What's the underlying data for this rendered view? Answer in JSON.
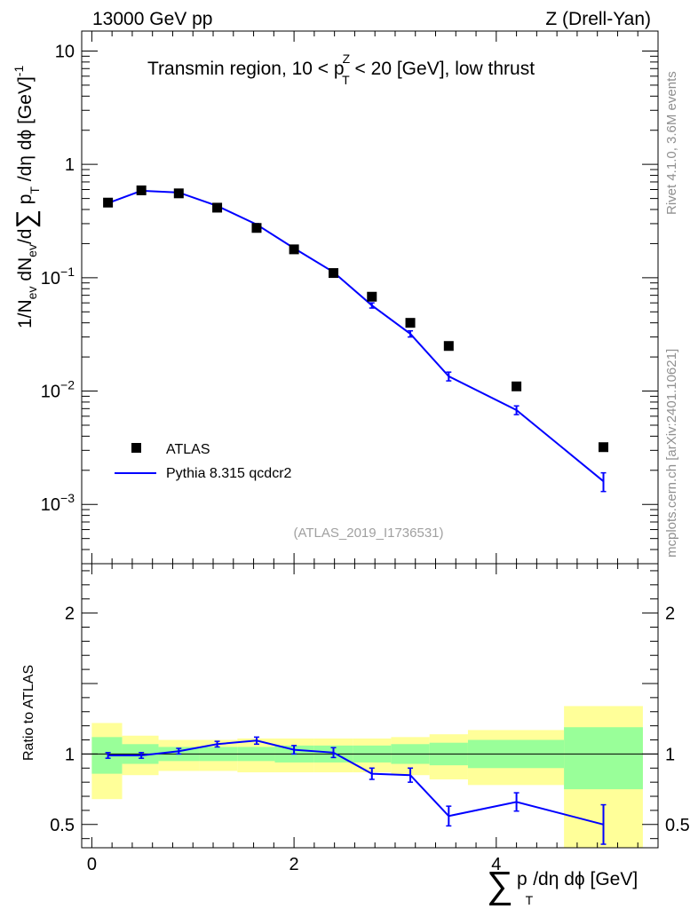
{
  "header": {
    "left": "13000 GeV pp",
    "right": "Z (Drell-Yan)"
  },
  "side_labels": {
    "rivet": "Rivet 4.1.0,  3.6M events",
    "mcplots": "mcplots.cern.ch [arXiv:2401.10621]"
  },
  "chart_data": {
    "type": "line",
    "title": {
      "pre": "Transmin region, 10 < p",
      "sup": "Z",
      "sub": "T",
      "post": " < 20 [GeV], low thrust"
    },
    "analysis_id": "(ATLAS_2019_I1736531)",
    "ylabel": {
      "main": "1/N",
      "sub1": "ev",
      "mid": " dN",
      "sub2": "ev",
      "mid2": "/d",
      "sigma": "∑",
      "pt": " p",
      "sub3": "T",
      "rest": " /dη dϕ  [GeV]",
      "sup": "-1"
    },
    "xlabel": {
      "sigma": "∑",
      "p": "p",
      "sub": "T",
      "rest": "/dη dϕ [GeV]"
    },
    "ratio_ylabel": "Ratio to ATLAS",
    "xlim": [
      -0.1,
      5.6
    ],
    "main_ylim": [
      0.0003,
      15
    ],
    "main_yscale": "log",
    "main_yticks": [
      {
        "v": 0.001,
        "base": "10",
        "exp": "−3"
      },
      {
        "v": 0.01,
        "base": "10",
        "exp": "−2"
      },
      {
        "v": 0.1,
        "base": "10",
        "exp": "−1"
      },
      {
        "v": 1,
        "base": "1",
        "exp": ""
      },
      {
        "v": 10,
        "base": "10",
        "exp": ""
      }
    ],
    "ratio_ylim": [
      0.335,
      2.35
    ],
    "ratio_yticks": [
      {
        "v": 0.5,
        "label": "0.5"
      },
      {
        "v": 1,
        "label": "1"
      },
      {
        "v": 2,
        "label": "2"
      }
    ],
    "xticks": [
      {
        "v": 0,
        "label": "0"
      },
      {
        "v": 2,
        "label": "2"
      },
      {
        "v": 4,
        "label": "4"
      }
    ],
    "legend": [
      {
        "name": "ATLAS",
        "marker": "square"
      },
      {
        "name": "Pythia 8.315 qcdcr2",
        "marker": "line"
      }
    ],
    "bins": [
      [
        0.0,
        0.3
      ],
      [
        0.3,
        0.66
      ],
      [
        0.66,
        1.06
      ],
      [
        1.06,
        1.44
      ],
      [
        1.44,
        1.81
      ],
      [
        1.81,
        2.2
      ],
      [
        2.2,
        2.58
      ],
      [
        2.58,
        2.96
      ],
      [
        2.96,
        3.34
      ],
      [
        3.34,
        3.72
      ],
      [
        3.72,
        4.67
      ],
      [
        4.67,
        5.45
      ]
    ],
    "x": [
      0.16,
      0.49,
      0.86,
      1.24,
      1.63,
      2.0,
      2.39,
      2.77,
      3.15,
      3.53,
      4.2,
      5.06
    ],
    "series": [
      {
        "name": "ATLAS",
        "color": "#000000",
        "values": [
          0.46,
          0.59,
          0.555,
          0.415,
          0.275,
          0.178,
          0.11,
          0.068,
          0.04,
          0.025,
          0.011,
          0.0032
        ]
      },
      {
        "name": "Pythia 8.315 qcdcr2",
        "color": "#0000ff",
        "values": [
          0.455,
          0.585,
          0.565,
          0.43,
          0.295,
          0.182,
          0.112,
          0.057,
          0.032,
          0.0135,
          0.0068,
          0.0016
        ],
        "errors": [
          0.006,
          0.007,
          0.007,
          0.006,
          0.005,
          0.004,
          0.003,
          0.003,
          0.002,
          0.0012,
          0.0006,
          0.0003
        ]
      }
    ],
    "ratio": {
      "values": [
        0.99,
        0.99,
        1.02,
        1.07,
        1.095,
        1.03,
        1.01,
        0.86,
        0.85,
        0.56,
        0.66,
        0.5
      ],
      "errors": [
        0.02,
        0.02,
        0.02,
        0.02,
        0.025,
        0.03,
        0.035,
        0.04,
        0.05,
        0.07,
        0.065,
        0.14
      ]
    },
    "bands": {
      "stat": [
        [
          0.86,
          1.12
        ],
        [
          0.93,
          1.07
        ],
        [
          0.95,
          1.05
        ],
        [
          0.95,
          1.05
        ],
        [
          0.95,
          1.05
        ],
        [
          0.94,
          1.06
        ],
        [
          0.94,
          1.06
        ],
        [
          0.94,
          1.06
        ],
        [
          0.93,
          1.07
        ],
        [
          0.92,
          1.08
        ],
        [
          0.9,
          1.1
        ],
        [
          0.75,
          1.19
        ]
      ],
      "total": [
        [
          0.68,
          1.22
        ],
        [
          0.85,
          1.13
        ],
        [
          0.88,
          1.1
        ],
        [
          0.88,
          1.1
        ],
        [
          0.87,
          1.11
        ],
        [
          0.87,
          1.11
        ],
        [
          0.87,
          1.11
        ],
        [
          0.87,
          1.11
        ],
        [
          0.85,
          1.12
        ],
        [
          0.82,
          1.14
        ],
        [
          0.78,
          1.17
        ],
        [
          0.33,
          1.34
        ]
      ],
      "stat_color": "#99ff99",
      "total_color": "#ffff99"
    }
  }
}
